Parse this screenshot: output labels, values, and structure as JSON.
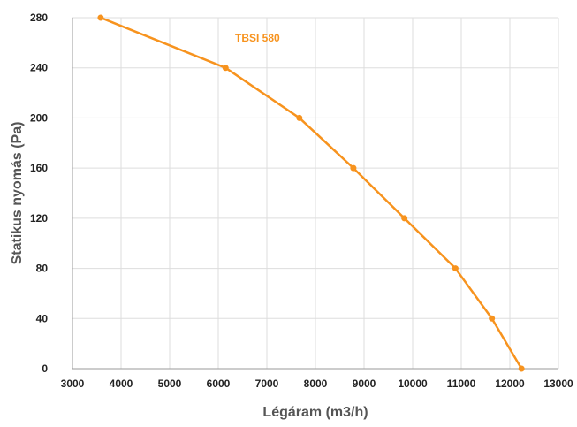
{
  "chart_data": {
    "type": "line",
    "title": "",
    "xlabel": "Légáram (m3/h)",
    "ylabel": "Statikus nyomás (Pa)",
    "xlim": [
      3000,
      13000
    ],
    "ylim": [
      0,
      280
    ],
    "x_ticks": [
      3000,
      4000,
      5000,
      6000,
      7000,
      8000,
      9000,
      10000,
      11000,
      12000,
      13000
    ],
    "y_ticks": [
      0,
      40,
      80,
      120,
      160,
      200,
      240,
      280
    ],
    "grid": "vertical and horizontal",
    "series": [
      {
        "name": "TBSI 580",
        "color": "#F7931E",
        "x": [
          3580,
          6150,
          7670,
          8780,
          9830,
          10880,
          11630,
          12240
        ],
        "y": [
          280,
          240,
          200,
          160,
          120,
          80,
          40,
          0
        ]
      }
    ]
  }
}
